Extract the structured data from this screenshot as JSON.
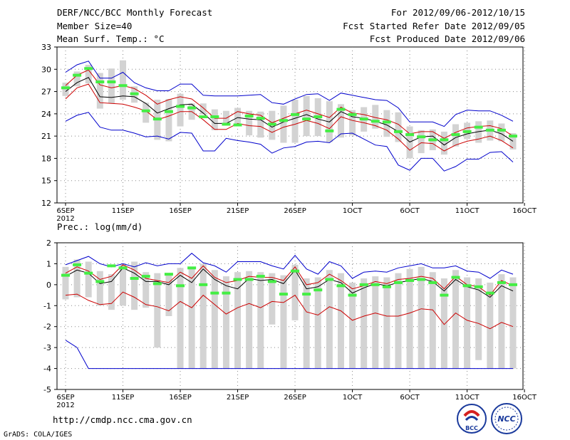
{
  "header": {
    "title": "DERF/NCC/BCC Monthly Forecast",
    "member_size": "Member Size=40",
    "variable": "Mean Surf. Temp.: °C",
    "period": "For 2012/09/06-2012/10/15",
    "started": "Fcst Started Refer Date 2012/09/05",
    "produced": "Fcst Produced Date 2012/09/06"
  },
  "footer": {
    "url": "http://cmdp.ncc.cma.gov.cn",
    "grads": "GrADS: COLA/IGES",
    "logo_bcc_text": "BCC",
    "logo_ncc_text": "NCC"
  },
  "chart_data": [
    {
      "type": "line",
      "title": "Mean Surf. Temp.: °C",
      "ylim": [
        12,
        33
      ],
      "yticks": [
        12,
        15,
        18,
        21,
        24,
        27,
        30,
        33
      ],
      "x_tick_labels": [
        {
          "day": 0,
          "label": "6SEP"
        },
        {
          "day": 5,
          "label": "11SEP"
        },
        {
          "day": 10,
          "label": "16SEP"
        },
        {
          "day": 15,
          "label": "21SEP"
        },
        {
          "day": 20,
          "label": "26SEP"
        },
        {
          "day": 25,
          "label": "1OCT"
        },
        {
          "day": 30,
          "label": "6OCT"
        },
        {
          "day": 35,
          "label": "11OCT"
        },
        {
          "day": 40,
          "label": "16OCT"
        }
      ],
      "x_year_label": "2012",
      "series": [
        {
          "name": "ensemble max",
          "color": "#0000cc",
          "values": [
            29.6,
            30.6,
            31.1,
            28.8,
            28.8,
            29.6,
            28.2,
            27.5,
            27.1,
            27.1,
            28.0,
            28.0,
            26.5,
            26.4,
            26.4,
            26.4,
            26.5,
            26.6,
            25.5,
            25.3,
            26.0,
            26.6,
            26.7,
            25.8,
            26.8,
            26.5,
            26.2,
            25.9,
            25.8,
            24.8,
            22.9,
            22.9,
            22.9,
            22.3,
            23.9,
            24.5,
            24.4,
            24.4,
            23.8,
            23.0
          ]
        },
        {
          "name": "mean +1 std",
          "color": "#cc0000",
          "values": [
            27.8,
            29.2,
            29.9,
            27.9,
            27.5,
            27.8,
            27.4,
            26.5,
            25.3,
            25.9,
            26.3,
            26.0,
            24.8,
            23.4,
            23.4,
            24.3,
            24.0,
            23.8,
            22.8,
            23.4,
            24.0,
            24.5,
            24.0,
            23.5,
            24.9,
            24.1,
            23.9,
            23.5,
            23.2,
            22.6,
            21.3,
            21.6,
            21.6,
            20.7,
            21.5,
            22.1,
            22.3,
            22.4,
            22.0,
            21.0
          ]
        },
        {
          "name": "ensemble mean",
          "color": "#000000",
          "values": [
            27.0,
            28.2,
            28.9,
            26.3,
            26.2,
            26.4,
            26.3,
            25.4,
            24.1,
            24.7,
            25.2,
            25.3,
            24.1,
            22.7,
            22.7,
            23.5,
            23.3,
            23.2,
            22.2,
            22.9,
            23.4,
            23.9,
            23.3,
            22.9,
            24.3,
            23.6,
            23.4,
            23.0,
            22.5,
            21.6,
            20.2,
            20.9,
            21.0,
            19.8,
            20.8,
            21.3,
            21.6,
            21.8,
            21.3,
            20.3
          ]
        },
        {
          "name": "mean -1 std",
          "color": "#cc0000",
          "values": [
            26.0,
            27.5,
            28.0,
            25.5,
            25.4,
            25.3,
            24.9,
            24.4,
            23.2,
            23.7,
            24.3,
            24.3,
            23.2,
            21.9,
            21.9,
            22.7,
            22.4,
            22.3,
            21.5,
            22.2,
            22.6,
            23.1,
            22.7,
            22.0,
            23.6,
            23.1,
            22.8,
            22.4,
            21.8,
            20.6,
            19.1,
            20.1,
            20.0,
            19.0,
            19.8,
            20.3,
            20.6,
            21.0,
            20.4,
            19.4
          ]
        },
        {
          "name": "ensemble min",
          "color": "#0000cc",
          "values": [
            23.0,
            23.8,
            24.2,
            22.2,
            21.8,
            21.8,
            21.4,
            20.9,
            21.0,
            20.6,
            21.5,
            21.4,
            19.0,
            19.0,
            20.7,
            20.4,
            20.2,
            19.9,
            18.7,
            19.4,
            19.6,
            20.2,
            20.3,
            20.1,
            21.3,
            21.4,
            20.6,
            19.8,
            19.6,
            17.1,
            16.4,
            18.0,
            18.0,
            16.3,
            16.9,
            17.9,
            17.9,
            18.8,
            18.9,
            17.5
          ]
        }
      ],
      "bars": {
        "name": "interquartile range",
        "color": "#d3d3d3",
        "low": [
          26.4,
          27.7,
          28.1,
          24.7,
          25.4,
          25.9,
          25.5,
          22.8,
          20.5,
          20.3,
          22.3,
          23.2,
          23.9,
          21.8,
          22.4,
          22.4,
          21.1,
          20.8,
          20.5,
          20.1,
          20.1,
          21.0,
          21.0,
          20.2,
          20.8,
          21.1,
          21.6,
          22.0,
          20.9,
          20.2,
          18.0,
          18.7,
          19.1,
          18.5,
          19.6,
          20.6,
          20.1,
          20.4,
          20.3,
          19.2
        ],
        "high": [
          28.2,
          29.7,
          30.6,
          29.5,
          30.1,
          31.2,
          27.7,
          25.5,
          25.9,
          26.0,
          26.7,
          25.4,
          25.4,
          24.6,
          24.4,
          24.8,
          24.4,
          24.3,
          24.4,
          25.1,
          25.9,
          26.4,
          26.1,
          25.7,
          25.3,
          24.5,
          24.9,
          25.2,
          24.5,
          24.2,
          22.3,
          21.8,
          21.9,
          21.6,
          22.6,
          22.8,
          23.0,
          23.1,
          22.7,
          21.4
        ]
      },
      "observed": {
        "name": "climatology",
        "color": "#44ee44",
        "values": [
          27.5,
          29.2,
          30.1,
          28.3,
          28.3,
          27.8,
          26.7,
          24.4,
          23.3,
          24.3,
          25.0,
          24.8,
          23.6,
          23.6,
          22.6,
          22.5,
          23.7,
          23.4,
          22.6,
          23.1,
          23.9,
          23.3,
          23.6,
          21.7,
          24.6,
          23.9,
          23.3,
          23.0,
          22.9,
          21.6,
          21.2,
          20.9,
          20.5,
          20.5,
          21.2,
          21.6,
          22.2,
          21.8,
          21.8,
          21.0
        ]
      }
    },
    {
      "type": "line",
      "title": "Prec.: log(mm/d)",
      "ylim": [
        -5,
        2
      ],
      "yticks": [
        -5,
        -4,
        -3,
        -2,
        -1,
        0,
        1,
        2
      ],
      "x_tick_labels": [
        {
          "day": 0,
          "label": "6SEP"
        },
        {
          "day": 5,
          "label": "11SEP"
        },
        {
          "day": 10,
          "label": "16SEP"
        },
        {
          "day": 15,
          "label": "21SEP"
        },
        {
          "day": 20,
          "label": "26SEP"
        },
        {
          "day": 25,
          "label": "1OCT"
        },
        {
          "day": 30,
          "label": "6OCT"
        },
        {
          "day": 35,
          "label": "11OCT"
        },
        {
          "day": 40,
          "label": "16OCT"
        }
      ],
      "x_year_label": "2012",
      "series": [
        {
          "name": "ensemble max",
          "color": "#0000cc",
          "values": [
            0.95,
            1.15,
            1.35,
            1.0,
            0.85,
            1.0,
            0.85,
            1.05,
            0.9,
            1.0,
            1.0,
            1.5,
            1.05,
            0.9,
            0.6,
            1.1,
            1.1,
            1.1,
            0.9,
            0.75,
            1.4,
            0.75,
            0.5,
            1.1,
            0.9,
            0.3,
            0.6,
            0.65,
            0.6,
            0.8,
            0.9,
            1.0,
            0.8,
            0.8,
            0.9,
            0.65,
            0.6,
            0.3,
            0.7,
            0.5
          ]
        },
        {
          "name": "mean +1 std",
          "color": "#cc0000",
          "values": [
            0.55,
            0.85,
            0.65,
            0.25,
            0.4,
            0.95,
            0.7,
            0.3,
            0.2,
            0.1,
            0.6,
            0.3,
            0.9,
            0.35,
            0.1,
            0.2,
            0.4,
            0.35,
            0.35,
            0.2,
            0.85,
            0.0,
            0.1,
            0.5,
            0.2,
            -0.2,
            -0.05,
            0.15,
            0.05,
            0.25,
            0.3,
            0.4,
            0.3,
            -0.2,
            0.4,
            0.0,
            -0.1,
            -0.5,
            0.2,
            -0.05
          ]
        },
        {
          "name": "ensemble mean",
          "color": "#000000",
          "values": [
            0.4,
            0.7,
            0.55,
            0.05,
            0.15,
            0.8,
            0.55,
            0.15,
            0.15,
            0.0,
            0.45,
            0.1,
            0.75,
            0.25,
            -0.05,
            -0.2,
            0.3,
            0.2,
            0.25,
            0.05,
            0.7,
            -0.2,
            -0.1,
            0.25,
            0.1,
            -0.4,
            -0.15,
            0.05,
            -0.05,
            0.1,
            0.2,
            0.3,
            0.15,
            -0.3,
            0.25,
            -0.1,
            -0.25,
            -0.6,
            -0.05,
            -0.3
          ]
        },
        {
          "name": "mean -1 std",
          "color": "#cc0000",
          "values": [
            -0.5,
            -0.45,
            -0.75,
            -0.95,
            -0.9,
            -0.35,
            -0.6,
            -0.95,
            -1.05,
            -1.25,
            -0.8,
            -1.1,
            -0.5,
            -0.95,
            -1.4,
            -1.1,
            -0.9,
            -1.1,
            -0.8,
            -0.85,
            -0.5,
            -1.3,
            -1.45,
            -1.05,
            -1.25,
            -1.7,
            -1.5,
            -1.35,
            -1.5,
            -1.5,
            -1.35,
            -1.15,
            -1.2,
            -1.9,
            -1.35,
            -1.7,
            -1.85,
            -2.1,
            -1.8,
            -2.0
          ]
        },
        {
          "name": "ensemble min",
          "color": "#0000cc",
          "values": [
            -2.65,
            -3.0,
            -4.0,
            -4.0,
            -4.0,
            -4.0,
            -4.0,
            -4.0,
            -4.0,
            -4.0,
            -4.0,
            -4.0,
            -4.0,
            -4.0,
            -4.0,
            -4.0,
            -4.0,
            -4.0,
            -4.0,
            -4.0,
            -4.0,
            -4.0,
            -4.0,
            -4.0,
            -4.0,
            -4.0,
            -4.0,
            -4.0,
            -4.0,
            -4.0,
            -4.0,
            -4.0,
            -4.0,
            -4.0,
            -4.0,
            -4.0,
            -4.0,
            -4.0,
            -4.0,
            -4.0
          ]
        }
      ],
      "bars": {
        "name": "interquartile range",
        "color": "#d3d3d3",
        "low": [
          -0.7,
          -0.6,
          -0.6,
          -1.0,
          -1.2,
          -1.0,
          -1.2,
          -1.1,
          -3.0,
          -1.5,
          -4.0,
          -4.0,
          -4.0,
          -4.0,
          -4.0,
          -4.0,
          -4.0,
          -4.0,
          -1.9,
          -4.0,
          -1.7,
          -4.0,
          -4.0,
          -4.0,
          -4.0,
          -4.0,
          -4.0,
          -4.0,
          -4.0,
          -4.0,
          -4.0,
          -4.0,
          -4.0,
          -4.0,
          -4.0,
          -4.0,
          -3.6,
          -4.0,
          -4.0,
          -4.0
        ],
        "high": [
          0.85,
          1.2,
          1.1,
          0.65,
          0.5,
          0.95,
          1.1,
          0.6,
          0.55,
          0.45,
          0.8,
          0.75,
          1.0,
          0.7,
          0.4,
          0.6,
          0.65,
          0.6,
          0.55,
          0.45,
          0.95,
          0.3,
          0.35,
          0.7,
          0.55,
          0.1,
          0.3,
          0.4,
          0.35,
          0.55,
          0.75,
          0.85,
          0.6,
          0.3,
          0.7,
          0.35,
          0.3,
          0.1,
          0.5,
          0.35
        ]
      },
      "observed": {
        "name": "climatology",
        "color": "#44ee44",
        "values": [
          0.45,
          0.95,
          0.55,
          0.15,
          0.9,
          0.8,
          0.3,
          0.4,
          0.05,
          0.5,
          -0.05,
          0.8,
          0.0,
          -0.4,
          -0.4,
          0.25,
          0.25,
          0.4,
          0.15,
          -0.45,
          0.65,
          -0.45,
          -0.25,
          0.25,
          -0.05,
          -0.5,
          0.0,
          0.0,
          -0.1,
          0.1,
          0.2,
          0.25,
          0.1,
          -0.5,
          0.35,
          -0.05,
          -0.1,
          -0.4,
          0.1,
          0.0
        ]
      }
    }
  ]
}
